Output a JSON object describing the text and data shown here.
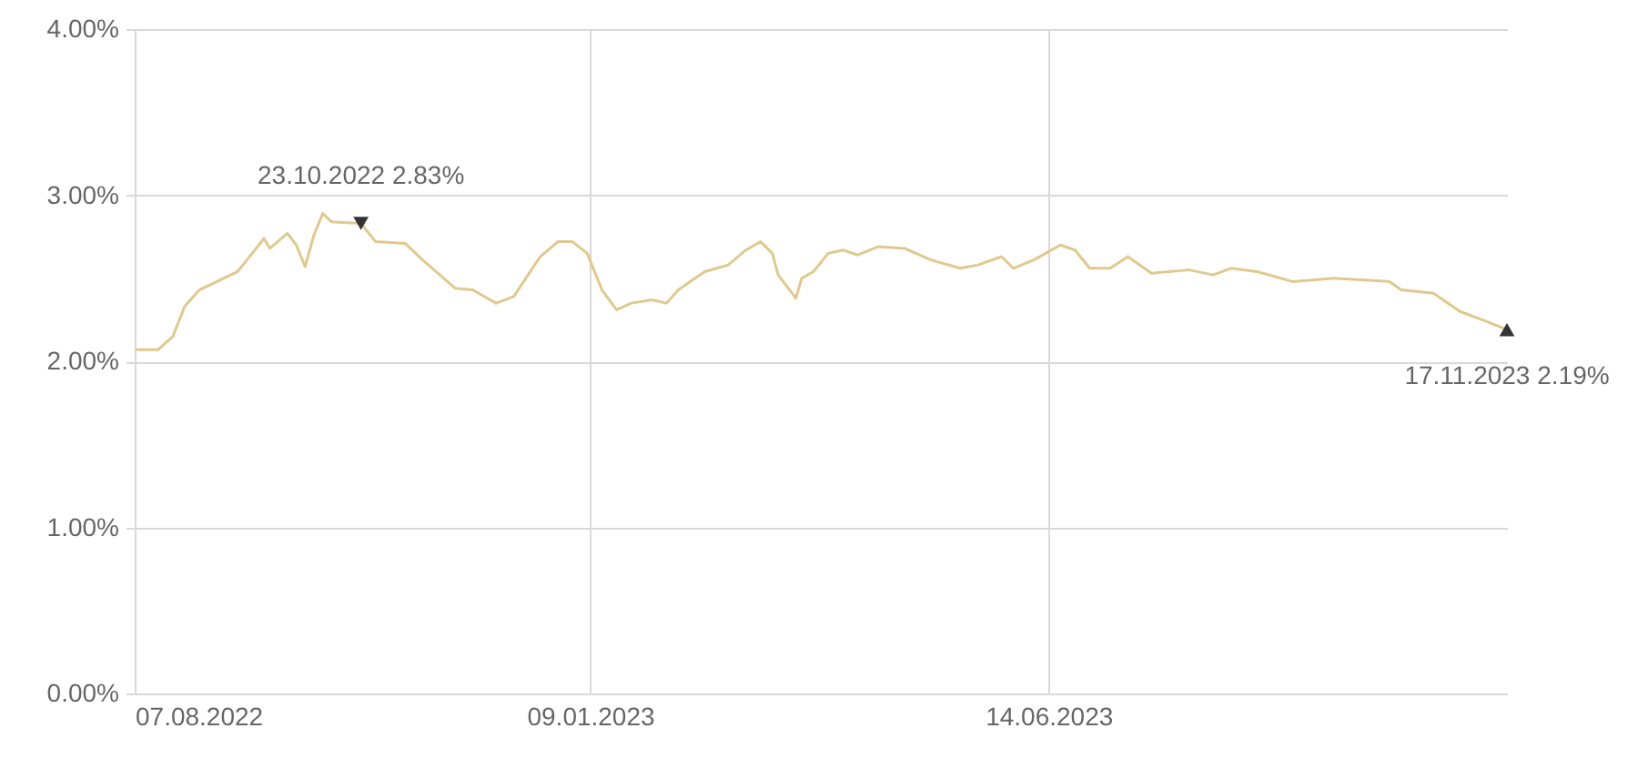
{
  "chart_data": {
    "type": "line",
    "x": [
      "2022-08-07",
      "2022-08-15",
      "2022-08-20",
      "2022-08-24",
      "2022-08-29",
      "2022-09-04",
      "2022-09-11",
      "2022-09-16",
      "2022-09-20",
      "2022-09-22",
      "2022-09-28",
      "2022-10-01",
      "2022-10-04",
      "2022-10-07",
      "2022-10-10",
      "2022-10-13",
      "2022-10-23",
      "2022-10-28",
      "2022-11-07",
      "2022-11-13",
      "2022-11-24",
      "2022-11-30",
      "2022-12-08",
      "2022-12-14",
      "2022-12-23",
      "2022-12-29",
      "2023-01-03",
      "2023-01-08",
      "2023-01-13",
      "2023-01-18",
      "2023-01-23",
      "2023-01-30",
      "2023-02-04",
      "2023-02-08",
      "2023-02-17",
      "2023-02-25",
      "2023-03-03",
      "2023-03-08",
      "2023-03-12",
      "2023-03-14",
      "2023-03-20",
      "2023-03-22",
      "2023-03-26",
      "2023-03-31",
      "2023-04-05",
      "2023-04-10",
      "2023-04-17",
      "2023-04-26",
      "2023-05-05",
      "2023-05-15",
      "2023-05-21",
      "2023-05-29",
      "2023-06-02",
      "2023-06-09",
      "2023-06-16",
      "2023-06-18",
      "2023-06-23",
      "2023-06-28",
      "2023-07-05",
      "2023-07-11",
      "2023-07-19",
      "2023-08-01",
      "2023-08-09",
      "2023-08-15",
      "2023-08-24",
      "2023-09-05",
      "2023-09-19",
      "2023-10-08",
      "2023-10-12",
      "2023-10-23",
      "2023-11-01",
      "2023-11-10",
      "2023-11-17"
    ],
    "series": [
      {
        "color": "#e0c98f",
        "values": [
          2.07,
          2.07,
          2.15,
          2.33,
          2.43,
          2.48,
          2.54,
          2.65,
          2.74,
          2.68,
          2.77,
          2.7,
          2.57,
          2.76,
          2.89,
          2.84,
          2.83,
          2.72,
          2.71,
          2.61,
          2.44,
          2.43,
          2.35,
          2.39,
          2.63,
          2.72,
          2.72,
          2.65,
          2.43,
          2.31,
          2.35,
          2.37,
          2.35,
          2.43,
          2.54,
          2.58,
          2.67,
          2.72,
          2.65,
          2.52,
          2.38,
          2.5,
          2.54,
          2.65,
          2.67,
          2.64,
          2.69,
          2.68,
          2.61,
          2.56,
          2.58,
          2.63,
          2.56,
          2.61,
          2.68,
          2.7,
          2.67,
          2.56,
          2.56,
          2.63,
          2.53,
          2.55,
          2.52,
          2.56,
          2.54,
          2.48,
          2.5,
          2.48,
          2.43,
          2.41,
          2.3,
          2.24,
          2.19
        ]
      }
    ],
    "xlim": [
      "2022-08-07",
      "2023-11-17"
    ],
    "xticks": [
      {
        "value": "2022-08-07",
        "label": "07.08.2022"
      },
      {
        "value": "2023-01-09",
        "label": "09.01.2023"
      },
      {
        "value": "2023-06-14",
        "label": "14.06.2023"
      }
    ],
    "ylim": [
      0,
      4
    ],
    "yticks": [
      {
        "value": 0,
        "label": "0.00%"
      },
      {
        "value": 1,
        "label": "1.00%"
      },
      {
        "value": 2,
        "label": "2.00%"
      },
      {
        "value": 3,
        "label": "3.00%"
      },
      {
        "value": 4,
        "label": "4.00%"
      }
    ],
    "annotations": [
      {
        "text": "23.10.2022 2.83%",
        "x": "2022-10-23",
        "y": 2.83
      },
      {
        "text": "17.11.2023 2.19%",
        "x": "2023-11-17",
        "y": 2.19
      }
    ],
    "grid": true
  }
}
